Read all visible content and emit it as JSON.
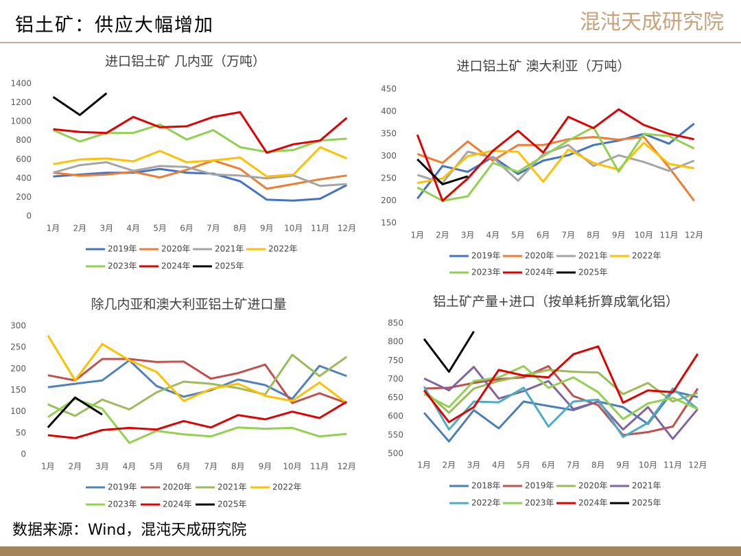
{
  "header": {
    "title": "铝土矿：供应大幅增加",
    "logo": "混沌天成研究院"
  },
  "source": "数据来源：Wind，混沌天成研究院",
  "chart_data": [
    {
      "type": "line",
      "title": "进口铝土矿 几内亚（万吨）",
      "categories": [
        "1月",
        "2月",
        "3月",
        "4月",
        "5月",
        "6月",
        "7月",
        "8月",
        "9月",
        "10月",
        "11月",
        "12月"
      ],
      "ylim": [
        0,
        1400
      ],
      "yticks": [
        0,
        200,
        400,
        600,
        800,
        1000,
        1200,
        1400
      ],
      "grid": false,
      "series": [
        {
          "name": "2019年",
          "color": "#4472c4",
          "values": [
            420,
            440,
            460,
            460,
            500,
            460,
            450,
            370,
            175,
            165,
            185,
            330
          ]
        },
        {
          "name": "2020年",
          "color": "#ed7d31",
          "values": [
            460,
            430,
            440,
            470,
            410,
            490,
            590,
            500,
            290,
            340,
            390,
            430
          ]
        },
        {
          "name": "2021年",
          "color": "#a5a5a5",
          "values": [
            460,
            540,
            570,
            480,
            530,
            520,
            440,
            430,
            400,
            430,
            320,
            340
          ]
        },
        {
          "name": "2022年",
          "color": "#ffc000",
          "values": [
            550,
            600,
            610,
            580,
            690,
            570,
            590,
            620,
            420,
            440,
            730,
            610
          ]
        },
        {
          "name": "2023年",
          "color": "#8fd14f",
          "values": [
            910,
            790,
            880,
            880,
            970,
            810,
            910,
            730,
            680,
            700,
            800,
            820
          ]
        },
        {
          "name": "2024年",
          "color": "#e00000",
          "values": [
            920,
            890,
            880,
            1050,
            940,
            950,
            1050,
            1100,
            670,
            760,
            800,
            1040
          ]
        },
        {
          "name": "2025年",
          "color": "#000000",
          "values": [
            1260,
            1070,
            1300,
            null,
            null,
            null,
            null,
            null,
            null,
            null,
            null,
            null
          ]
        }
      ]
    },
    {
      "type": "line",
      "title": "进口铝土矿 澳大利亚（万吨）",
      "categories": [
        "1月",
        "2月",
        "3月",
        "4月",
        "5月",
        "6月",
        "7月",
        "8月",
        "9月",
        "10月",
        "11月",
        "12月"
      ],
      "ylim": [
        150,
        450
      ],
      "yticks": [
        150,
        200,
        250,
        300,
        350,
        400,
        450
      ],
      "grid": false,
      "series": [
        {
          "name": "2019年",
          "color": "#4472c4",
          "values": [
            205,
            278,
            265,
            298,
            260,
            290,
            302,
            325,
            335,
            350,
            328,
            373
          ]
        },
        {
          "name": "2020年",
          "color": "#ed7d31",
          "values": [
            305,
            285,
            333,
            290,
            325,
            325,
            338,
            343,
            337,
            343,
            275,
            200
          ]
        },
        {
          "name": "2021年",
          "color": "#a5a5a5",
          "values": [
            258,
            240,
            310,
            297,
            245,
            305,
            325,
            278,
            302,
            287,
            267,
            290
          ]
        },
        {
          "name": "2022年",
          "color": "#ffc000",
          "values": [
            240,
            250,
            300,
            312,
            310,
            243,
            315,
            285,
            270,
            330,
            283,
            273
          ]
        },
        {
          "name": "2023年",
          "color": "#8fd14f",
          "values": [
            230,
            200,
            210,
            285,
            265,
            300,
            335,
            365,
            265,
            350,
            345,
            317
          ]
        },
        {
          "name": "2024年",
          "color": "#e00000",
          "values": [
            348,
            200,
            250,
            312,
            357,
            308,
            388,
            363,
            405,
            370,
            350,
            338
          ]
        },
        {
          "name": "2025年",
          "color": "#000000",
          "values": [
            293,
            237,
            255,
            null,
            null,
            null,
            null,
            null,
            null,
            null,
            null,
            null
          ]
        }
      ]
    },
    {
      "type": "line",
      "title": "除几内亚和澳大利亚铝土矿进口量",
      "categories": [
        "1月",
        "2月",
        "3月",
        "4月",
        "5月",
        "6月",
        "7月",
        "8月",
        "9月",
        "10月",
        "11月",
        "12月"
      ],
      "ylim": [
        0,
        300
      ],
      "yticks": [
        0,
        50,
        100,
        150,
        200,
        250,
        300
      ],
      "grid": false,
      "series": [
        {
          "name": "2019年",
          "color": "#4f81bd",
          "values": [
            157,
            165,
            173,
            220,
            160,
            135,
            150,
            175,
            162,
            130,
            207,
            183
          ]
        },
        {
          "name": "2020年",
          "color": "#c0504d",
          "values": [
            185,
            173,
            223,
            223,
            216,
            217,
            177,
            190,
            210,
            120,
            143,
            120
          ]
        },
        {
          "name": "2021年",
          "color": "#9bbb59",
          "values": [
            117,
            90,
            128,
            105,
            145,
            170,
            165,
            155,
            140,
            233,
            183,
            228
          ]
        },
        {
          "name": "2022年",
          "color": "#ffc000",
          "values": [
            278,
            173,
            258,
            220,
            193,
            125,
            153,
            165,
            137,
            125,
            168,
            120
          ]
        },
        {
          "name": "2023年",
          "color": "#92d050",
          "values": [
            87,
            130,
            107,
            27,
            55,
            47,
            42,
            63,
            60,
            62,
            42,
            48
          ]
        },
        {
          "name": "2024年",
          "color": "#e00000",
          "values": [
            45,
            38,
            57,
            62,
            58,
            78,
            63,
            92,
            82,
            100,
            85,
            123
          ]
        },
        {
          "name": "2025年",
          "color": "#000000",
          "values": [
            63,
            133,
            93,
            null,
            null,
            null,
            null,
            null,
            null,
            null,
            null,
            null
          ]
        }
      ]
    },
    {
      "type": "line",
      "title": "铝土矿产量+进口（按单耗折算成氧化铝）",
      "categories": [
        "1月",
        "2月",
        "3月",
        "4月",
        "5月",
        "6月",
        "7月",
        "8月",
        "9月",
        "10月",
        "11月",
        "12月"
      ],
      "ylim": [
        500,
        850
      ],
      "yticks": [
        500,
        550,
        600,
        650,
        700,
        750,
        800,
        850
      ],
      "grid": false,
      "series": [
        {
          "name": "2018年",
          "color": "#4a7eb5",
          "values": [
            610,
            533,
            617,
            568,
            640,
            628,
            617,
            640,
            625,
            580,
            668,
            652
          ]
        },
        {
          "name": "2019年",
          "color": "#c0504d",
          "values": [
            675,
            677,
            690,
            700,
            705,
            735,
            655,
            630,
            550,
            558,
            573,
            675
          ]
        },
        {
          "name": "2020年",
          "color": "#9bbb59",
          "values": [
            670,
            610,
            675,
            695,
            710,
            725,
            720,
            718,
            660,
            690,
            640,
            663
          ]
        },
        {
          "name": "2021年",
          "color": "#8064a2",
          "values": [
            702,
            670,
            733,
            648,
            668,
            695,
            620,
            640,
            565,
            625,
            540,
            620
          ]
        },
        {
          "name": "2022年",
          "color": "#4bacc6",
          "values": [
            680,
            565,
            640,
            638,
            677,
            573,
            640,
            645,
            545,
            583,
            675,
            620
          ]
        },
        {
          "name": "2023年",
          "color": "#92d050",
          "values": [
            660,
            625,
            695,
            705,
            735,
            677,
            705,
            665,
            593,
            635,
            650,
            620
          ]
        },
        {
          "name": "2024年",
          "color": "#e00000",
          "values": [
            670,
            585,
            625,
            725,
            710,
            705,
            767,
            788,
            637,
            670,
            665,
            768
          ]
        },
        {
          "name": "2025年",
          "color": "#000000",
          "values": [
            808,
            720,
            828,
            null,
            null,
            null,
            null,
            null,
            null,
            null,
            null,
            null
          ]
        }
      ]
    }
  ]
}
